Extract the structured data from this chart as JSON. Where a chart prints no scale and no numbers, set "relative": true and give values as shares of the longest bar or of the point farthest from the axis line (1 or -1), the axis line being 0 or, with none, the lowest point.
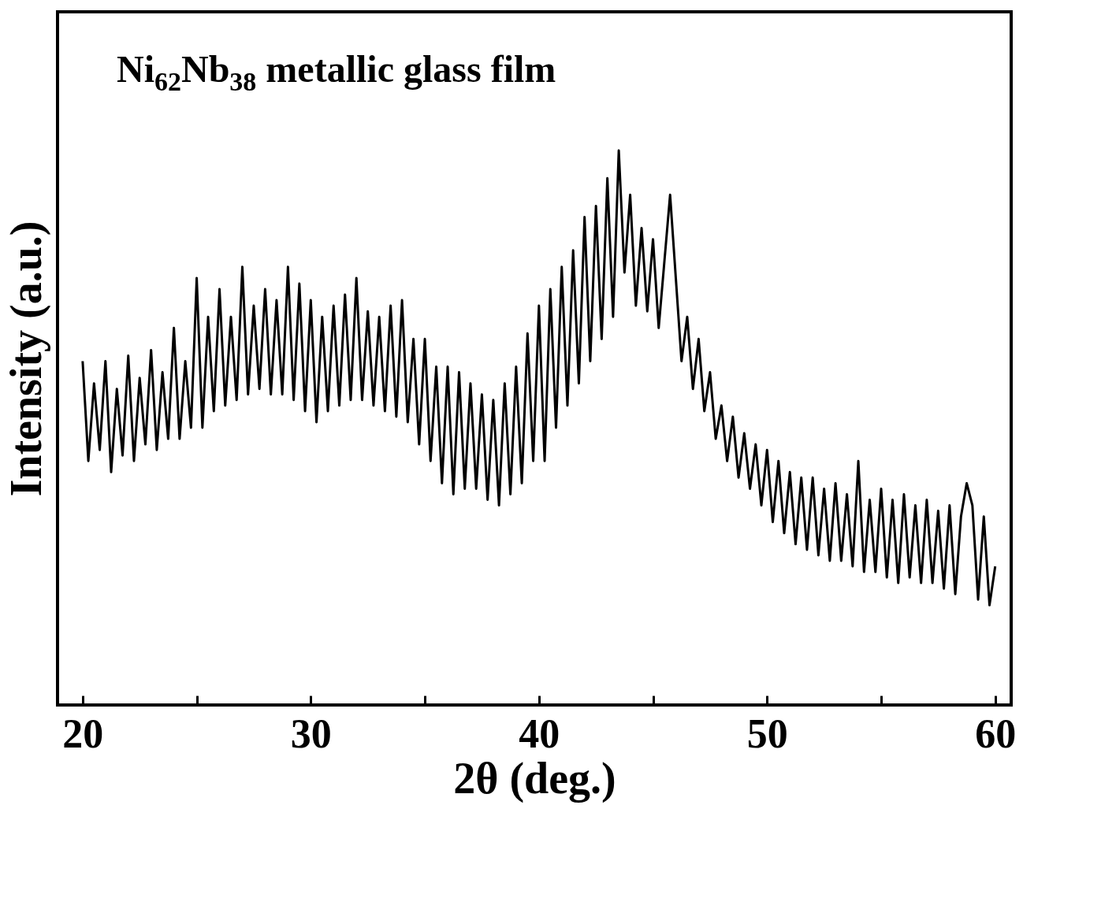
{
  "chart_data": {
    "type": "line",
    "relative": true,
    "xlabel": "2θ (deg.)",
    "ylabel": "Intensity (a.u.)",
    "annotations": [
      "Ni$_{62}$Nb$_{38}$ metallic glass film"
    ],
    "xlim": [
      18.9,
      60.7
    ],
    "xticks": [
      20,
      {
        "value": 25,
        "label": null
      },
      30,
      {
        "value": 35,
        "label": null
      },
      40,
      {
        "value": 45,
        "label": null
      },
      50,
      {
        "value": 55,
        "label": null
      },
      60
    ],
    "grid": false,
    "marker": "none",
    "line_style": "solid",
    "series": [
      {
        "color": "#000000",
        "x": [
          20,
          20.25,
          20.5,
          20.75,
          21,
          21.25,
          21.5,
          21.75,
          22,
          22.25,
          22.5,
          22.75,
          23,
          23.25,
          23.5,
          23.75,
          24,
          24.25,
          24.5,
          24.75,
          25,
          25.25,
          25.5,
          25.75,
          26,
          26.25,
          26.5,
          26.75,
          27,
          27.25,
          27.5,
          27.75,
          28,
          28.25,
          28.5,
          28.75,
          29,
          29.25,
          29.5,
          29.75,
          30,
          30.25,
          30.5,
          30.75,
          31,
          31.25,
          31.5,
          31.75,
          32,
          32.25,
          32.5,
          32.75,
          33,
          33.25,
          33.5,
          33.75,
          34,
          34.25,
          34.5,
          34.75,
          35,
          35.25,
          35.5,
          35.75,
          36,
          36.25,
          36.5,
          36.75,
          37,
          37.25,
          37.5,
          37.75,
          38,
          38.25,
          38.5,
          38.75,
          39,
          39.25,
          39.5,
          39.75,
          40,
          40.25,
          40.5,
          40.75,
          41,
          41.25,
          41.5,
          41.75,
          42,
          42.25,
          42.5,
          42.75,
          43,
          43.25,
          43.5,
          43.75,
          44,
          44.25,
          44.5,
          44.75,
          45,
          45.25,
          45.5,
          45.75,
          46,
          46.25,
          46.5,
          46.75,
          47,
          47.25,
          47.5,
          47.75,
          48,
          48.25,
          48.5,
          48.75,
          49,
          49.25,
          49.5,
          49.75,
          50,
          50.25,
          50.5,
          50.75,
          51,
          51.25,
          51.5,
          51.75,
          52,
          52.25,
          52.5,
          52.75,
          53,
          53.25,
          53.5,
          53.75,
          54,
          54.25,
          54.5,
          54.75,
          55,
          55.25,
          55.5,
          55.75,
          56,
          56.25,
          56.5,
          56.75,
          57,
          57.25,
          57.5,
          57.75,
          58,
          58.25,
          58.5,
          58.75,
          59,
          59.25,
          59.5,
          59.75,
          60
        ],
        "values": [
          0.62,
          0.44,
          0.58,
          0.46,
          0.62,
          0.42,
          0.57,
          0.45,
          0.63,
          0.44,
          0.59,
          0.47,
          0.64,
          0.46,
          0.6,
          0.48,
          0.68,
          0.48,
          0.62,
          0.5,
          0.77,
          0.5,
          0.7,
          0.53,
          0.75,
          0.54,
          0.7,
          0.55,
          0.79,
          0.56,
          0.72,
          0.57,
          0.75,
          0.56,
          0.73,
          0.56,
          0.79,
          0.55,
          0.76,
          0.53,
          0.73,
          0.51,
          0.7,
          0.53,
          0.72,
          0.54,
          0.74,
          0.55,
          0.77,
          0.55,
          0.71,
          0.54,
          0.7,
          0.53,
          0.72,
          0.52,
          0.73,
          0.51,
          0.66,
          0.47,
          0.66,
          0.44,
          0.61,
          0.4,
          0.61,
          0.38,
          0.6,
          0.39,
          0.58,
          0.39,
          0.56,
          0.37,
          0.55,
          0.36,
          0.58,
          0.38,
          0.61,
          0.4,
          0.67,
          0.44,
          0.72,
          0.44,
          0.75,
          0.5,
          0.79,
          0.54,
          0.82,
          0.58,
          0.88,
          0.62,
          0.9,
          0.66,
          0.95,
          0.7,
          1.0,
          0.78,
          0.92,
          0.72,
          0.86,
          0.71,
          0.84,
          0.68,
          0.8,
          0.92,
          0.77,
          0.62,
          0.7,
          0.57,
          0.66,
          0.53,
          0.6,
          0.48,
          0.54,
          0.44,
          0.52,
          0.41,
          0.49,
          0.39,
          0.47,
          0.36,
          0.46,
          0.33,
          0.44,
          0.31,
          0.42,
          0.29,
          0.41,
          0.28,
          0.41,
          0.27,
          0.39,
          0.26,
          0.4,
          0.26,
          0.38,
          0.25,
          0.44,
          0.24,
          0.37,
          0.24,
          0.39,
          0.23,
          0.37,
          0.22,
          0.38,
          0.23,
          0.36,
          0.22,
          0.37,
          0.22,
          0.35,
          0.21,
          0.36,
          0.2,
          0.34,
          0.4,
          0.36,
          0.19,
          0.34,
          0.18,
          0.25
        ]
      }
    ]
  }
}
